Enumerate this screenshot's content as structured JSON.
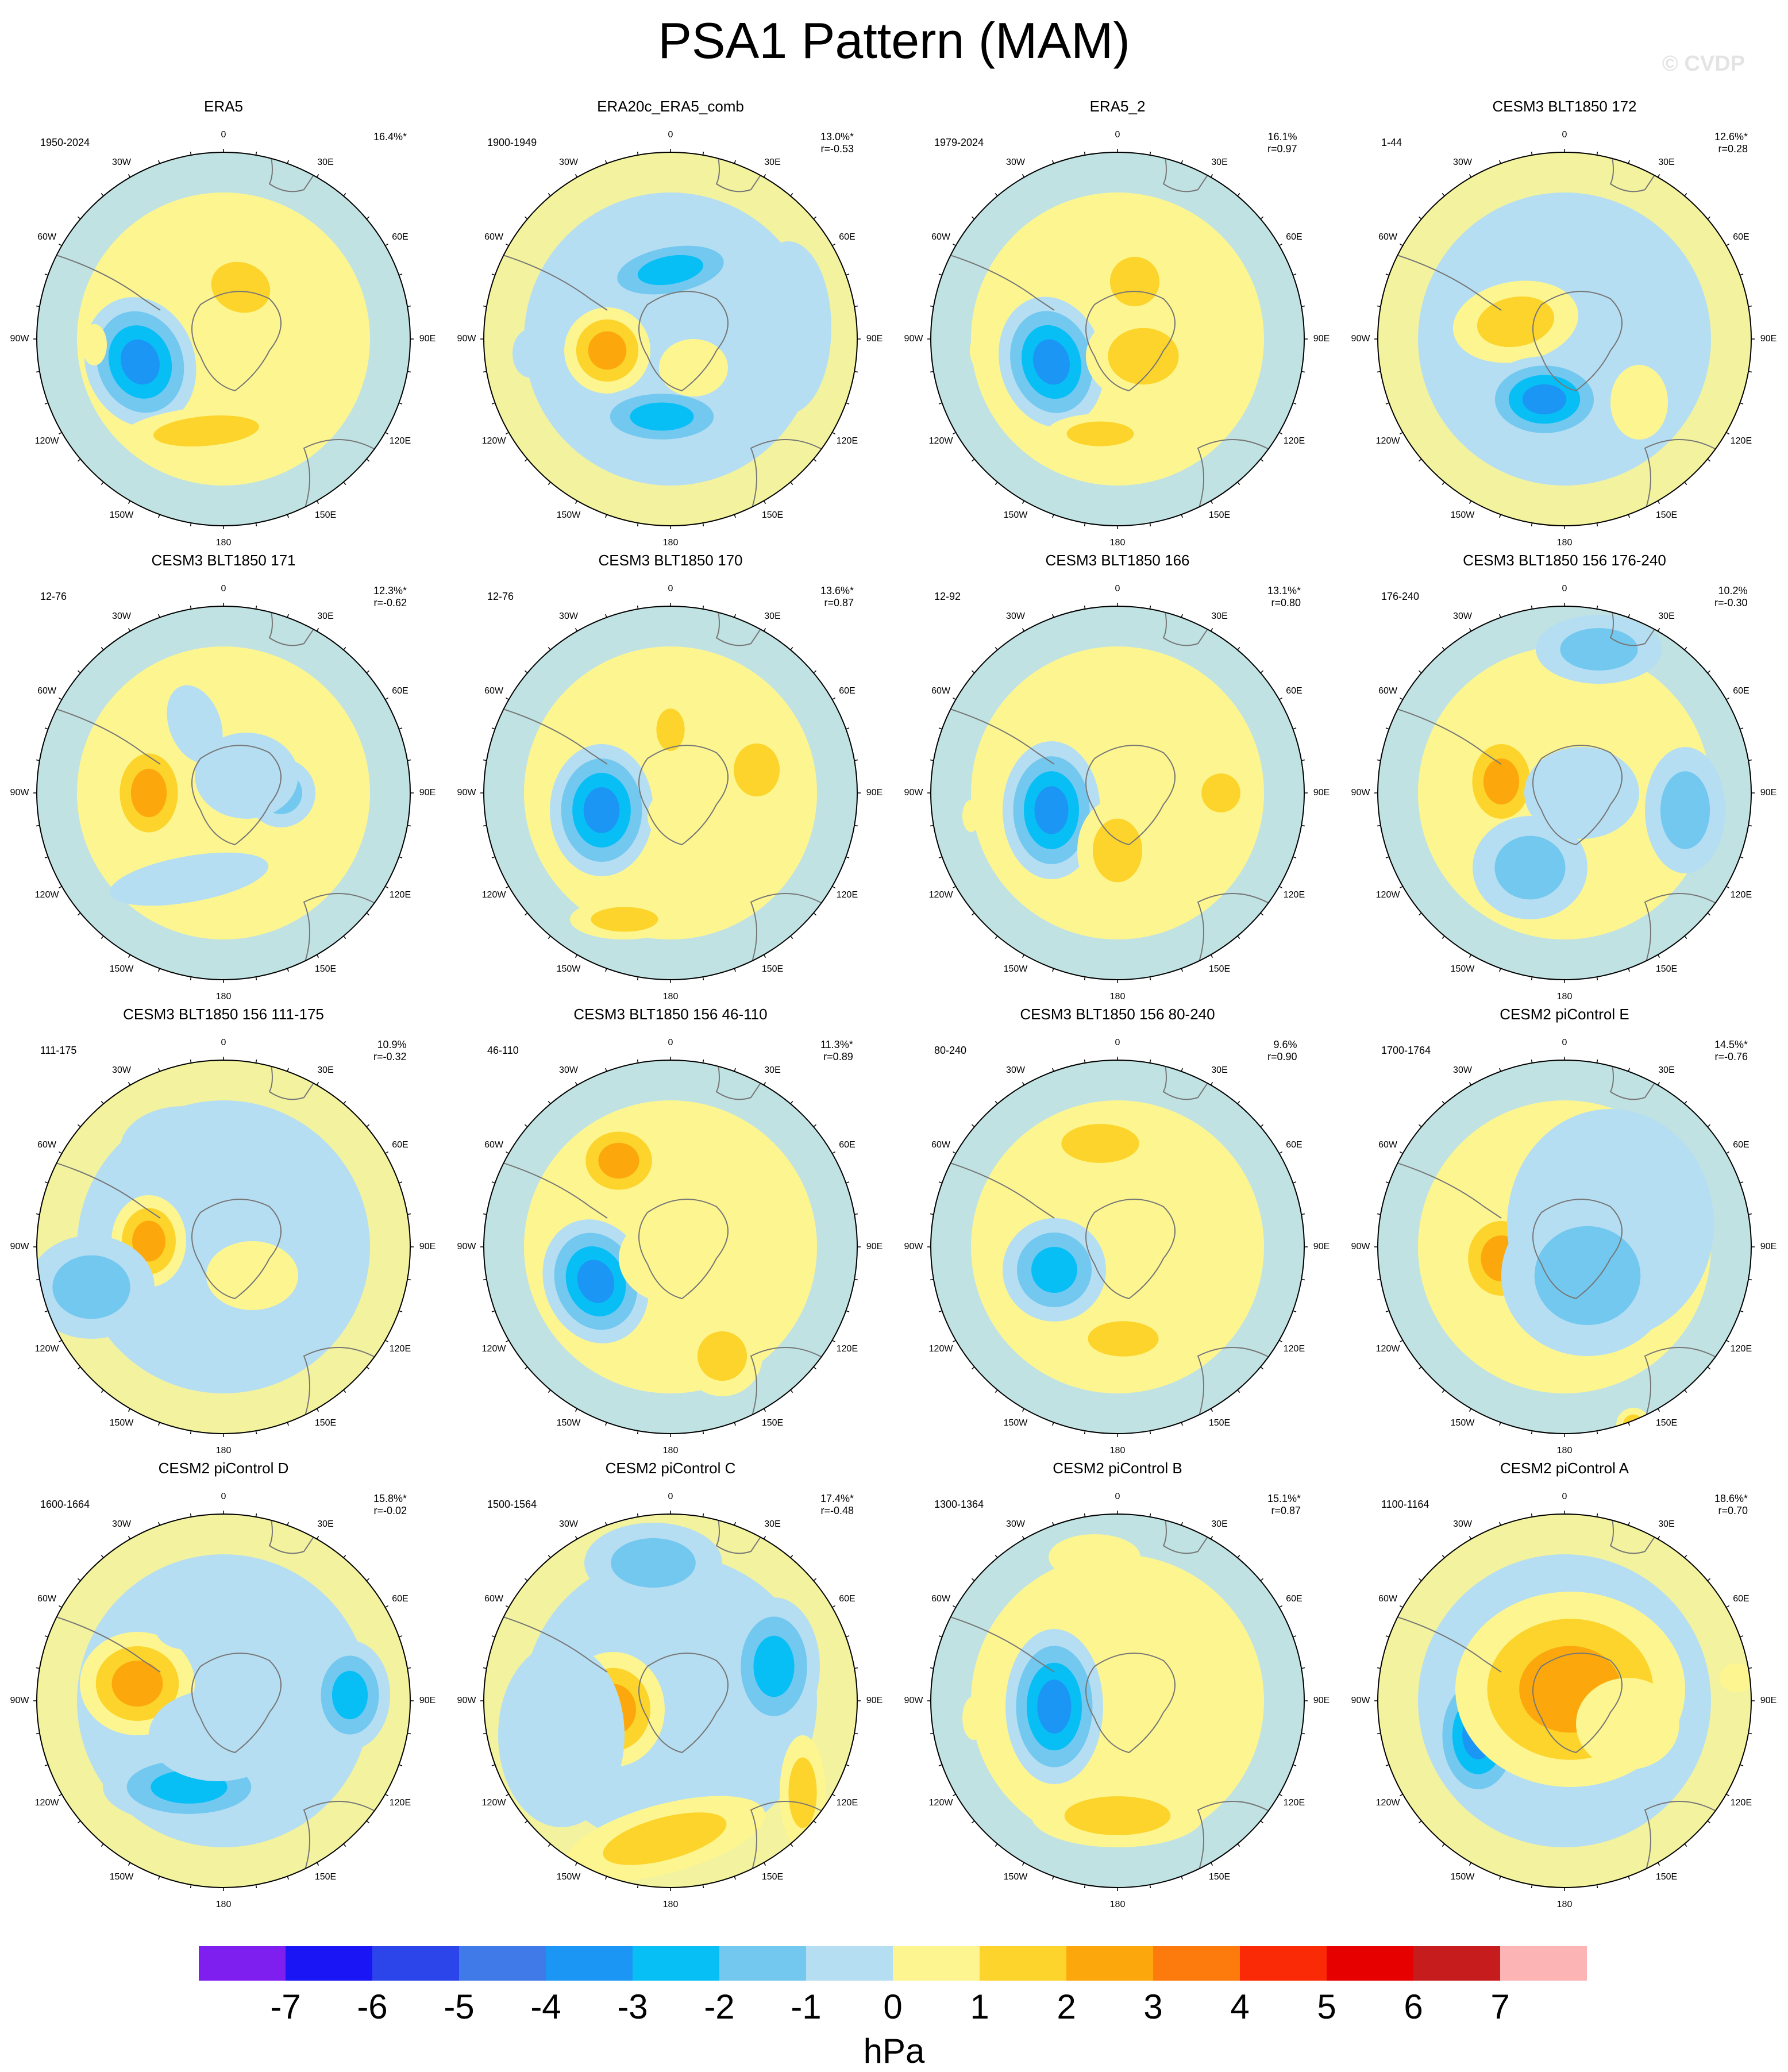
{
  "title": "PSA1 Pattern (MAM)",
  "copyright": "© CVDP",
  "colorbar": {
    "colors": [
      "#7f1fef",
      "#1a15f5",
      "#2b45ea",
      "#3f7ae8",
      "#1b96f4",
      "#07bff5",
      "#73c8f0",
      "#b6def2",
      "#fdf690",
      "#fcd42c",
      "#fca80c",
      "#fd7a0d",
      "#fb2a06",
      "#e70000",
      "#c71c1e",
      "#fdb4b4"
    ],
    "ticks": [
      "-7",
      "-6",
      "-5",
      "-4",
      "-3",
      "-2",
      "-1",
      "0",
      "1",
      "2",
      "3",
      "4",
      "5",
      "6",
      "7"
    ],
    "unit": "hPa"
  },
  "lon_labels": [
    "0",
    "30E",
    "60E",
    "90E",
    "120E",
    "150E",
    "180",
    "150W",
    "120W",
    "90W",
    "60W",
    "30W"
  ],
  "panels": [
    {
      "title": "ERA5",
      "period": "1950-2024",
      "pct": "16.4%*",
      "r": ""
    },
    {
      "title": "ERA20c_ERA5_comb",
      "period": "1900-1949",
      "pct": "13.0%*",
      "r": "r=-0.53"
    },
    {
      "title": "ERA5_2",
      "period": "1979-2024",
      "pct": "16.1%",
      "r": "r=0.97"
    },
    {
      "title": "CESM3 BLT1850 172",
      "period": "1-44",
      "pct": "12.6%*",
      "r": "r=0.28"
    },
    {
      "title": "CESM3 BLT1850 171",
      "period": "12-76",
      "pct": "12.3%*",
      "r": "r=-0.62"
    },
    {
      "title": "CESM3 BLT1850 170",
      "period": "12-76",
      "pct": "13.6%*",
      "r": "r=0.87"
    },
    {
      "title": "CESM3 BLT1850 166",
      "period": "12-92",
      "pct": "13.1%*",
      "r": "r=0.80"
    },
    {
      "title": "CESM3 BLT1850 156 176-240",
      "period": "176-240",
      "pct": "10.2%",
      "r": "r=-0.30"
    },
    {
      "title": "CESM3 BLT1850 156 111-175",
      "period": "111-175",
      "pct": "10.9%",
      "r": "r=-0.32"
    },
    {
      "title": "CESM3 BLT1850 156 46-110",
      "period": "46-110",
      "pct": "11.3%*",
      "r": "r=0.89"
    },
    {
      "title": "CESM3 BLT1850 156 80-240",
      "period": "80-240",
      "pct": "9.6%",
      "r": "r=0.90"
    },
    {
      "title": "CESM2 piControl E",
      "period": "1700-1764",
      "pct": "14.5%*",
      "r": "r=-0.76"
    },
    {
      "title": "CESM2 piControl D",
      "period": "1600-1664",
      "pct": "15.8%*",
      "r": "r=-0.02"
    },
    {
      "title": "CESM2 piControl C",
      "period": "1500-1564",
      "pct": "17.4%*",
      "r": "r=-0.48"
    },
    {
      "title": "CESM2 piControl B",
      "period": "1300-1364",
      "pct": "15.1%*",
      "r": "r=0.87"
    },
    {
      "title": "CESM2 piControl A",
      "period": "1100-1164",
      "pct": "18.6%*",
      "r": "r=0.70"
    }
  ]
}
